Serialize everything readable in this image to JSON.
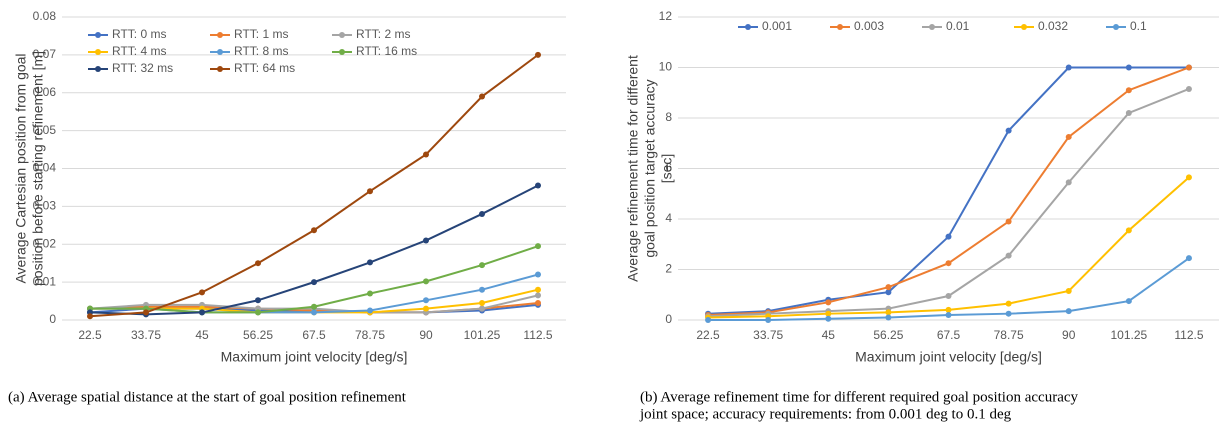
{
  "chart_data": [
    {
      "type": "line",
      "categories": [
        "22.5",
        "33.75",
        "45",
        "56.25",
        "67.5",
        "78.75",
        "90",
        "101.25",
        "112.5"
      ],
      "xlabel": "Maximum joint velocity [deg/s]",
      "ylabel": [
        "Average Cartesian position from goal",
        "position before starting refinement [m]"
      ],
      "ylim": [
        0,
        0.08
      ],
      "yticks": [
        0,
        0.01,
        0.02,
        0.03,
        0.04,
        0.05,
        0.06,
        0.07,
        0.08
      ],
      "grid": true,
      "caption": [
        "(a) Average spatial distance at the start of goal position refinement"
      ],
      "series": [
        {
          "name": "RTT: 0 ms",
          "color": "#4472c4",
          "values": [
            0.002,
            0.003,
            0.003,
            0.0025,
            0.0025,
            0.002,
            0.002,
            0.0025,
            0.004
          ]
        },
        {
          "name": "RTT: 1 ms",
          "color": "#ed7d31",
          "values": [
            0.003,
            0.0035,
            0.0035,
            0.003,
            0.0025,
            0.002,
            0.002,
            0.003,
            0.0045
          ]
        },
        {
          "name": "RTT: 2 ms",
          "color": "#a5a5a5",
          "values": [
            0.003,
            0.004,
            0.004,
            0.003,
            0.003,
            0.002,
            0.002,
            0.003,
            0.0065
          ]
        },
        {
          "name": "RTT: 4 ms",
          "color": "#ffc000",
          "values": [
            0.003,
            0.003,
            0.003,
            0.002,
            0.002,
            0.002,
            0.003,
            0.0045,
            0.008
          ]
        },
        {
          "name": "RTT: 8 ms",
          "color": "#5b9bd5",
          "values": [
            0.003,
            0.003,
            0.002,
            0.002,
            0.002,
            0.0025,
            0.0052,
            0.008,
            0.012
          ]
        },
        {
          "name": "RTT: 16 ms",
          "color": "#70ad47",
          "values": [
            0.003,
            0.003,
            0.002,
            0.002,
            0.0035,
            0.007,
            0.0102,
            0.0145,
            0.0195
          ]
        },
        {
          "name": "RTT: 32 ms",
          "color": "#264478",
          "values": [
            0.002,
            0.0015,
            0.002,
            0.0052,
            0.01,
            0.0152,
            0.021,
            0.028,
            0.0355
          ]
        },
        {
          "name": "RTT: 64 ms",
          "color": "#9e480e",
          "values": [
            0.001,
            0.002,
            0.0073,
            0.015,
            0.0237,
            0.034,
            0.0437,
            0.059,
            0.07
          ]
        }
      ]
    },
    {
      "type": "line",
      "categories": [
        "22.5",
        "33.75",
        "45",
        "56.25",
        "67.5",
        "78.75",
        "90",
        "101.25",
        "112.5"
      ],
      "xlabel": "Maximum joint velocity [deg/s]",
      "ylabel": [
        "Average refinement time for different",
        "goal position target accuracy",
        "[sec]"
      ],
      "ylim": [
        0,
        12
      ],
      "yticks": [
        0,
        2,
        4,
        6,
        8,
        10,
        12
      ],
      "grid": true,
      "caption": [
        "(b) Average refinement time for different required goal position accuracy",
        "joint space; accuracy requirements: from 0.001 deg to 0.1 deg"
      ],
      "series": [
        {
          "name": "0.001",
          "color": "#4472c4",
          "values": [
            0.25,
            0.35,
            0.8,
            1.1,
            3.3,
            7.5,
            10,
            10,
            10
          ]
        },
        {
          "name": "0.003",
          "color": "#ed7d31",
          "values": [
            0.2,
            0.3,
            0.7,
            1.3,
            2.25,
            3.9,
            7.25,
            9.1,
            10
          ]
        },
        {
          "name": "0.01",
          "color": "#a5a5a5",
          "values": [
            0.15,
            0.25,
            0.35,
            0.45,
            0.95,
            2.55,
            5.45,
            8.2,
            9.15
          ]
        },
        {
          "name": "0.032",
          "color": "#ffc000",
          "values": [
            0.1,
            0.15,
            0.25,
            0.3,
            0.4,
            0.65,
            1.15,
            3.55,
            5.65
          ]
        },
        {
          "name": "0.1",
          "color": "#5b9bd5",
          "values": [
            0,
            0,
            0.05,
            0.1,
            0.2,
            0.25,
            0.35,
            0.75,
            2.45
          ]
        }
      ]
    }
  ]
}
